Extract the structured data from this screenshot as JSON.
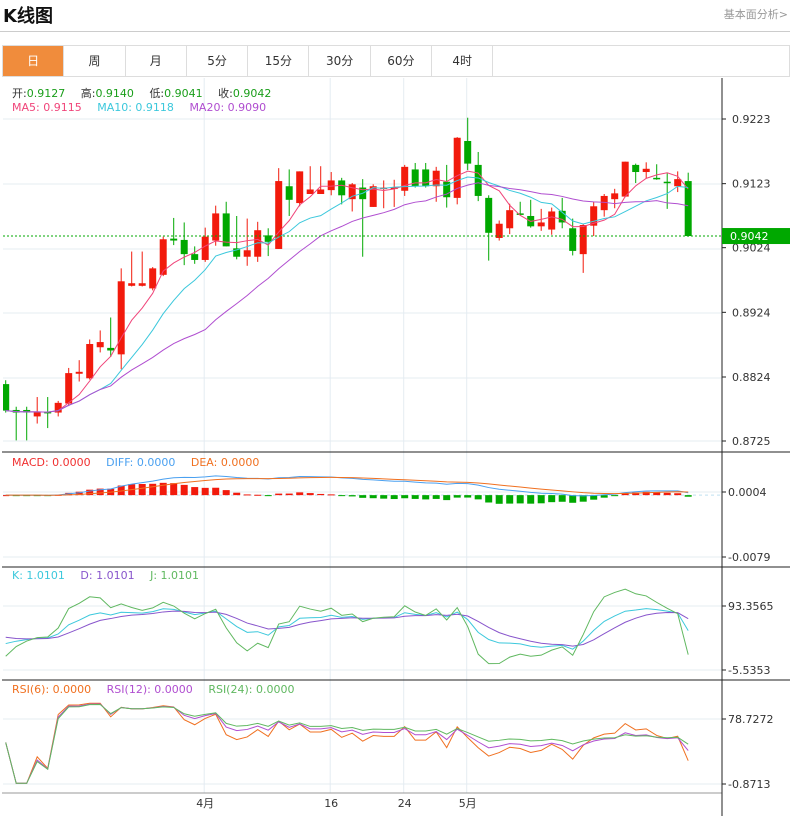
{
  "header": {
    "title": "K线图",
    "fundamental_link": "基本面分析>"
  },
  "tabs": [
    {
      "label": "日",
      "active": true
    },
    {
      "label": "周"
    },
    {
      "label": "月"
    },
    {
      "label": "5分"
    },
    {
      "label": "15分"
    },
    {
      "label": "30分"
    },
    {
      "label": "60分"
    },
    {
      "label": "4时"
    }
  ],
  "ohlc_legend": {
    "open_label": "开:",
    "open": "0.9127",
    "high_label": "高:",
    "high": "0.9140",
    "low_label": "低:",
    "low": "0.9041",
    "close_label": "收:",
    "close": "0.9042"
  },
  "ma_legend": {
    "ma5": "MA5: 0.9115",
    "ma10": "MA10: 0.9118",
    "ma20": "MA20: 0.9090"
  },
  "macd_legend": {
    "macd": "MACD: 0.0000",
    "diff": "DIFF: 0.0000",
    "dea": "DEA: 0.0000"
  },
  "kdj_legend": {
    "k": "K: 1.0101",
    "d": "D: 1.0101",
    "j": "J: 1.0101"
  },
  "rsi_legend": {
    "rsi6": "RSI(6): 0.0000",
    "rsi12": "RSI(12): 0.0000",
    "rsi24": "RSI(24): 0.0000"
  },
  "colors": {
    "up": "#f21a0c",
    "down": "#00a800",
    "ma5": "#f0457a",
    "ma10": "#3cc8dc",
    "ma20": "#b04ed0",
    "diff": "#4aa0f0",
    "dea": "#f07020",
    "rsi6": "#f07020",
    "rsi12": "#b04ed0",
    "rsi24": "#60b860",
    "kdj_k": "#3cc8dc",
    "kdj_d": "#8855cc",
    "kdj_j": "#60b860"
  },
  "chart_data": {
    "type": "candlestick",
    "price_axis_ticks": [
      "0.9223",
      "0.9123",
      "0.9024",
      "0.8924",
      "0.8824",
      "0.8725"
    ],
    "price_range": [
      0.8725,
      0.9223
    ],
    "last_price": "0.9042",
    "x_labels": [
      {
        "label": "4月",
        "index": 19
      },
      {
        "label": "16",
        "index": 31
      },
      {
        "label": "24",
        "index": 38
      },
      {
        "label": "5月",
        "index": 44
      }
    ],
    "macd_axis": {
      "ticks": [
        "0.0004",
        "-0.0079"
      ],
      "range": [
        -0.0079,
        0.0004
      ]
    },
    "kdj_axis": {
      "ticks": [
        "93.3565",
        "-5.5353"
      ],
      "range": [
        -5.5353,
        93.3565
      ]
    },
    "rsi_axis": {
      "ticks": [
        "78.7272",
        "-0.8713"
      ],
      "range": [
        -0.8713,
        78.7272
      ]
    },
    "candles": [
      [
        0.8813,
        0.8819,
        0.8769,
        0.8772
      ],
      [
        0.8773,
        0.8778,
        0.8726,
        0.8769
      ],
      [
        0.8773,
        0.8778,
        0.8726,
        0.8769
      ],
      [
        0.8763,
        0.8793,
        0.8752,
        0.877
      ],
      [
        0.877,
        0.8793,
        0.8745,
        0.8768
      ],
      [
        0.8769,
        0.8787,
        0.8763,
        0.8784
      ],
      [
        0.8783,
        0.8838,
        0.8779,
        0.883
      ],
      [
        0.8829,
        0.885,
        0.8817,
        0.8832
      ],
      [
        0.8822,
        0.8882,
        0.882,
        0.8875
      ],
      [
        0.887,
        0.8896,
        0.8862,
        0.8878
      ],
      [
        0.8869,
        0.8916,
        0.8855,
        0.8865
      ],
      [
        0.8859,
        0.8992,
        0.8836,
        0.8972
      ],
      [
        0.8965,
        0.9018,
        0.8964,
        0.8969
      ],
      [
        0.8965,
        0.9018,
        0.8964,
        0.8969
      ],
      [
        0.8961,
        0.8994,
        0.8958,
        0.8992
      ],
      [
        0.8982,
        0.9041,
        0.898,
        0.9037
      ],
      [
        0.9038,
        0.907,
        0.9028,
        0.9035
      ],
      [
        0.9036,
        0.9063,
        0.8997,
        0.9014
      ],
      [
        0.9014,
        0.9026,
        0.8999,
        0.9005
      ],
      [
        0.9005,
        0.9055,
        0.9002,
        0.9041
      ],
      [
        0.9035,
        0.9089,
        0.9027,
        0.9077
      ],
      [
        0.9077,
        0.9095,
        0.9026,
        0.9026
      ],
      [
        0.9023,
        0.9073,
        0.9006,
        0.901
      ],
      [
        0.901,
        0.9069,
        0.8996,
        0.902
      ],
      [
        0.901,
        0.9064,
        0.9002,
        0.9051
      ],
      [
        0.9043,
        0.9054,
        0.9011,
        0.9033
      ],
      [
        0.9022,
        0.9147,
        0.9022,
        0.9127
      ],
      [
        0.9119,
        0.9145,
        0.9073,
        0.9098
      ],
      [
        0.9093,
        0.9142,
        0.9088,
        0.9142
      ],
      [
        0.9107,
        0.915,
        0.9107,
        0.9114
      ],
      [
        0.9107,
        0.915,
        0.9107,
        0.9114
      ],
      [
        0.9113,
        0.9141,
        0.9105,
        0.9128
      ],
      [
        0.9128,
        0.9132,
        0.9091,
        0.9105
      ],
      [
        0.9099,
        0.9124,
        0.908,
        0.9122
      ],
      [
        0.9117,
        0.913,
        0.901,
        0.9099
      ],
      [
        0.9087,
        0.9122,
        0.9087,
        0.9119
      ],
      [
        0.9115,
        0.9128,
        0.9085,
        0.9117
      ],
      [
        0.9115,
        0.9129,
        0.9087,
        0.9117
      ],
      [
        0.9112,
        0.9152,
        0.9104,
        0.9149
      ],
      [
        0.9145,
        0.9155,
        0.9117,
        0.9119
      ],
      [
        0.9145,
        0.9155,
        0.9117,
        0.9119
      ],
      [
        0.9119,
        0.9149,
        0.9095,
        0.9143
      ],
      [
        0.9126,
        0.9152,
        0.9086,
        0.9102
      ],
      [
        0.9101,
        0.9195,
        0.9091,
        0.9194
      ],
      [
        0.9189,
        0.9225,
        0.9144,
        0.9154
      ],
      [
        0.9152,
        0.9172,
        0.9096,
        0.9104
      ],
      [
        0.9101,
        0.9105,
        0.9004,
        0.9047
      ],
      [
        0.9039,
        0.9066,
        0.9035,
        0.9061
      ],
      [
        0.9054,
        0.9092,
        0.9045,
        0.9082
      ],
      [
        0.9077,
        0.9095,
        0.9074,
        0.9076
      ],
      [
        0.9073,
        0.9098,
        0.9055,
        0.9057
      ],
      [
        0.9057,
        0.9084,
        0.905,
        0.9063
      ],
      [
        0.9052,
        0.9086,
        0.9044,
        0.908
      ],
      [
        0.9081,
        0.9101,
        0.9054,
        0.9063
      ],
      [
        0.9054,
        0.9069,
        0.9012,
        0.9019
      ],
      [
        0.9014,
        0.906,
        0.8985,
        0.9059
      ],
      [
        0.9058,
        0.9095,
        0.9042,
        0.9088
      ],
      [
        0.9082,
        0.9107,
        0.9072,
        0.9104
      ],
      [
        0.9099,
        0.9115,
        0.9085,
        0.9108
      ],
      [
        0.9103,
        0.9157,
        0.9102,
        0.9157
      ],
      [
        0.9152,
        0.9154,
        0.9124,
        0.9141
      ],
      [
        0.9141,
        0.9156,
        0.9131,
        0.9146
      ],
      [
        0.9132,
        0.9153,
        0.9129,
        0.9131
      ],
      [
        0.9126,
        0.9139,
        0.9084,
        0.9124
      ],
      [
        0.9119,
        0.9142,
        0.911,
        0.913
      ],
      [
        0.9127,
        0.914,
        0.9041,
        0.9042
      ]
    ]
  }
}
